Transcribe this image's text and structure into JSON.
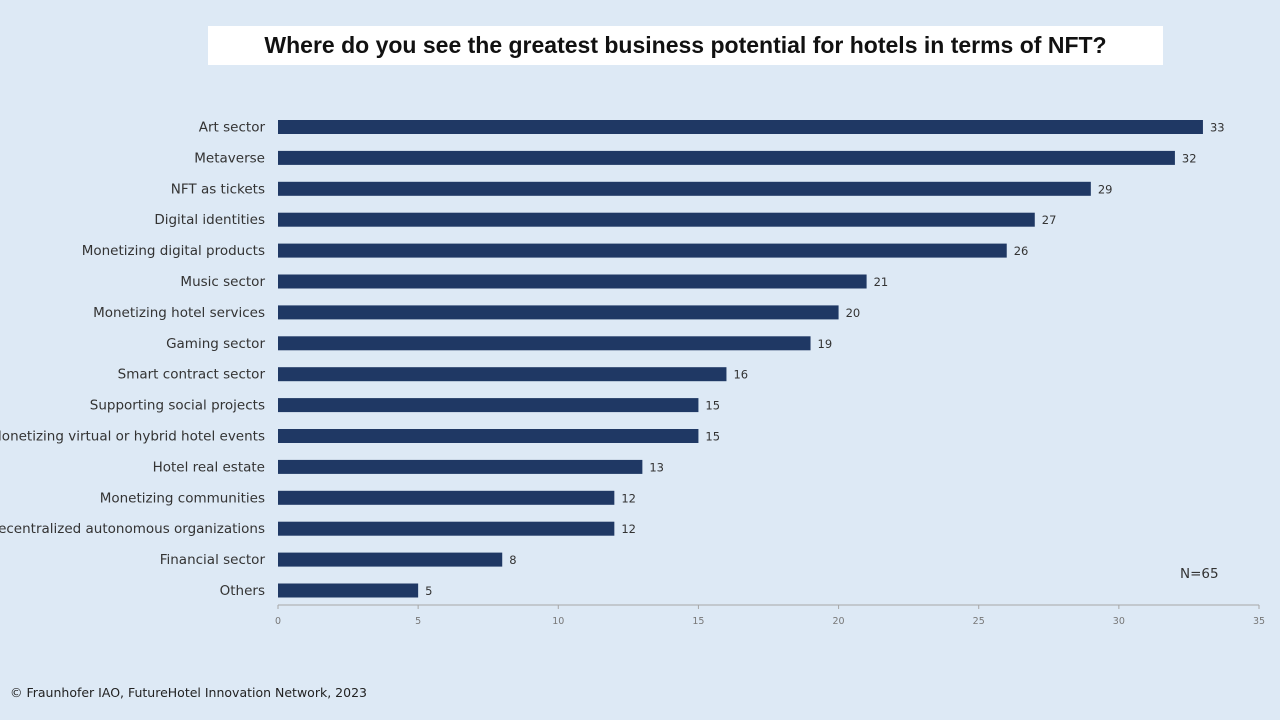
{
  "title": "Where do you see the greatest business potential for hotels in terms of NFT?",
  "note": "N=65",
  "footer": "© Fraunhofer IAO,  FutureHotel Innovation Network, 2023",
  "colors": {
    "background": "#dde9f5",
    "bar": "#1f3864",
    "axis": "#a6a6a6"
  },
  "chart_data": {
    "type": "bar",
    "orientation": "horizontal",
    "categories": [
      "Art sector",
      "Metaverse",
      "NFT as tickets",
      "Digital identities",
      "Monetizing digital products",
      "Music sector",
      "Monetizing hotel services",
      "Gaming sector",
      "Smart contract sector",
      "Supporting social projects",
      "Monetizing virtual or hybrid hotel events",
      "Hotel real estate",
      "Monetizing communities",
      "Decentralized autonomous organizations",
      "Financial sector",
      "Others"
    ],
    "values": [
      33,
      32,
      29,
      27,
      26,
      21,
      20,
      19,
      16,
      15,
      15,
      13,
      12,
      12,
      8,
      5
    ],
    "title": "Where do you see the greatest business potential for hotels in terms of NFT?",
    "xlabel": "",
    "ylabel": "",
    "xlim": [
      0,
      35
    ],
    "xticks": [
      0,
      5,
      10,
      15,
      20,
      25,
      30,
      35
    ],
    "grid": false,
    "legend": "none"
  }
}
